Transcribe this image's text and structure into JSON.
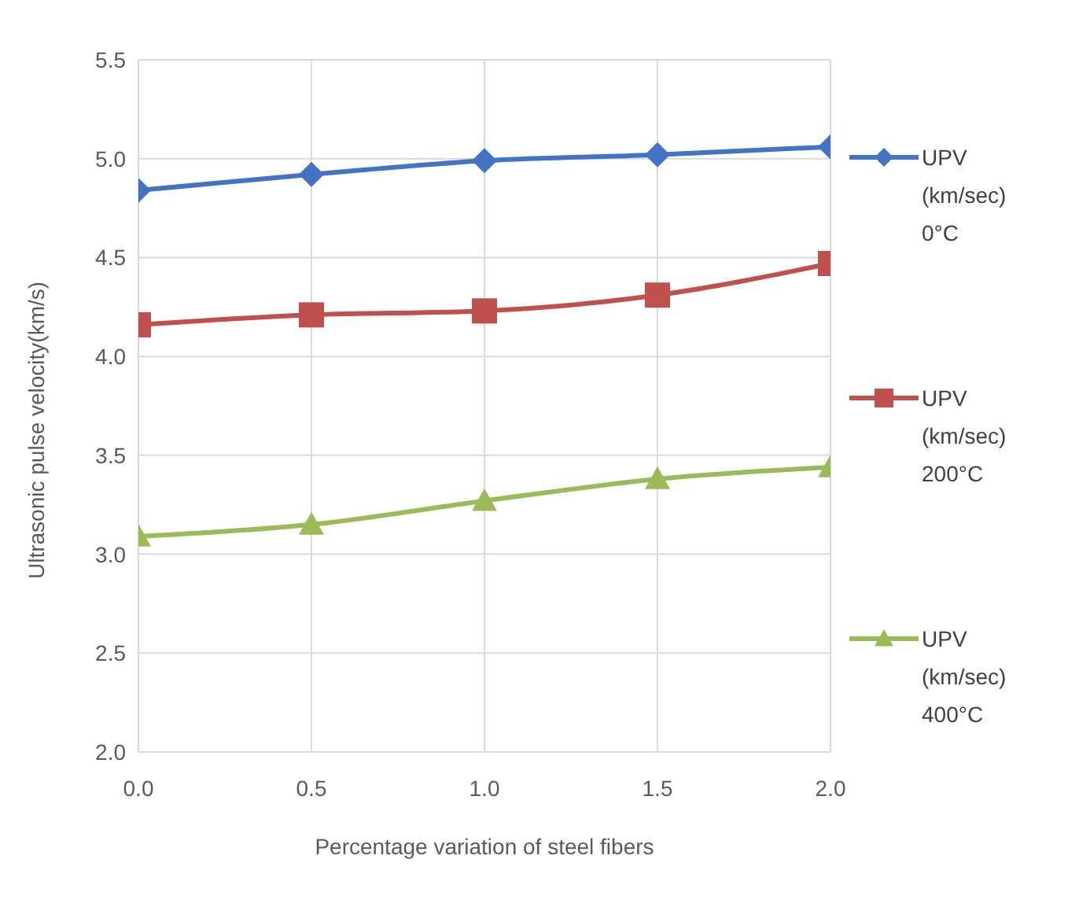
{
  "chart_data": {
    "type": "line",
    "xlabel": "Percentage variation of steel fibers",
    "ylabel": "Ultrasonic pulse velocity(km/s)",
    "x": [
      0,
      0.5,
      1,
      1.5,
      2
    ],
    "series": [
      {
        "name": "UPV (km/sec) 0°C",
        "color": "#4472c4",
        "marker": "diamond",
        "values": [
          4.84,
          4.92,
          4.99,
          5.02,
          5.06
        ]
      },
      {
        "name": "UPV (km/sec) 200°C",
        "color": "#c0504d",
        "marker": "square",
        "values": [
          4.16,
          4.21,
          4.23,
          4.31,
          4.47
        ]
      },
      {
        "name": "UPV (km/sec) 400°C",
        "color": "#9bbb59",
        "marker": "triangle",
        "values": [
          3.09,
          3.15,
          3.27,
          3.38,
          3.44
        ]
      }
    ],
    "xlim": [
      0,
      2
    ],
    "xticks": [
      {
        "value": 0,
        "label": "0.0"
      },
      {
        "value": 0.5,
        "label": "0.5"
      },
      {
        "value": 1,
        "label": "1.0"
      },
      {
        "value": 1.5,
        "label": "1.5"
      },
      {
        "value": 2,
        "label": "2.0"
      }
    ],
    "ylim": [
      2,
      5.5
    ],
    "yticks": [
      {
        "value": 2,
        "label": "2.0"
      },
      {
        "value": 2.5,
        "label": "2.5"
      },
      {
        "value": 3,
        "label": "3.0"
      },
      {
        "value": 3.5,
        "label": "3.5"
      },
      {
        "value": 4,
        "label": "4.0"
      },
      {
        "value": 4.5,
        "label": "4.5"
      },
      {
        "value": 5,
        "label": "5.0"
      },
      {
        "value": 5.5,
        "label": "5.5"
      }
    ],
    "grid": true,
    "legend": "right",
    "line_style": "solid"
  }
}
